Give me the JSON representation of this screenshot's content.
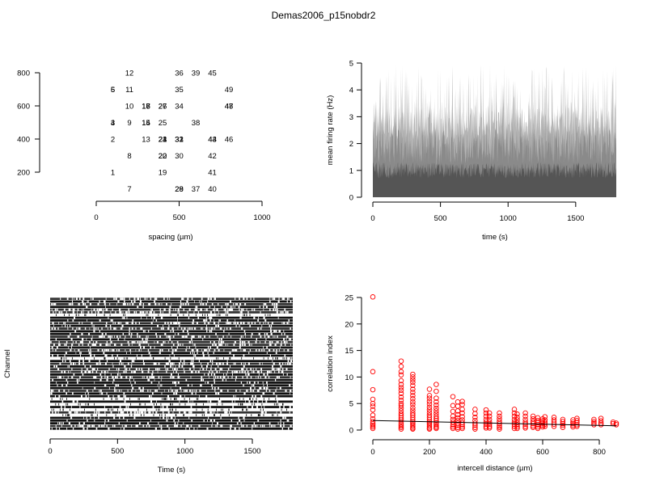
{
  "figure_title": "Demas2006_p15nobdr2",
  "chart_data": [
    {
      "id": "layout",
      "type": "scatter",
      "xlabel": "spacing (µm)",
      "ylabel": "",
      "xlim": [
        0,
        1000
      ],
      "ylim": [
        150,
        850
      ],
      "xticks": [
        0,
        500,
        1000
      ],
      "yticks": [
        200,
        400,
        600,
        800
      ],
      "points": [
        {
          "label": "1",
          "x": 100,
          "y": 200
        },
        {
          "label": "2",
          "x": 100,
          "y": 400
        },
        {
          "label": "3",
          "x": 100,
          "y": 500
        },
        {
          "label": "4",
          "x": 100,
          "y": 500
        },
        {
          "label": "5",
          "x": 100,
          "y": 700
        },
        {
          "label": "6",
          "x": 100,
          "y": 700
        },
        {
          "label": "7",
          "x": 200,
          "y": 100
        },
        {
          "label": "8",
          "x": 200,
          "y": 300
        },
        {
          "label": "9",
          "x": 200,
          "y": 500
        },
        {
          "label": "10",
          "x": 200,
          "y": 600
        },
        {
          "label": "11",
          "x": 200,
          "y": 700
        },
        {
          "label": "12",
          "x": 200,
          "y": 800
        },
        {
          "label": "13",
          "x": 300,
          "y": 400
        },
        {
          "label": "14",
          "x": 300,
          "y": 500
        },
        {
          "label": "15",
          "x": 300,
          "y": 500
        },
        {
          "label": "16",
          "x": 300,
          "y": 600
        },
        {
          "label": "17",
          "x": 300,
          "y": 600
        },
        {
          "label": "18",
          "x": 300,
          "y": 600
        },
        {
          "label": "19",
          "x": 400,
          "y": 200
        },
        {
          "label": "20",
          "x": 400,
          "y": 300
        },
        {
          "label": "21",
          "x": 400,
          "y": 400
        },
        {
          "label": "22",
          "x": 400,
          "y": 300
        },
        {
          "label": "23",
          "x": 400,
          "y": 400
        },
        {
          "label": "24",
          "x": 400,
          "y": 400
        },
        {
          "label": "25",
          "x": 400,
          "y": 500
        },
        {
          "label": "26",
          "x": 400,
          "y": 600
        },
        {
          "label": "27",
          "x": 400,
          "y": 600
        },
        {
          "label": "28",
          "x": 500,
          "y": 100
        },
        {
          "label": "29",
          "x": 500,
          "y": 100
        },
        {
          "label": "30",
          "x": 500,
          "y": 300
        },
        {
          "label": "31",
          "x": 500,
          "y": 400
        },
        {
          "label": "32",
          "x": 500,
          "y": 400
        },
        {
          "label": "33",
          "x": 500,
          "y": 400
        },
        {
          "label": "34",
          "x": 500,
          "y": 600
        },
        {
          "label": "35",
          "x": 500,
          "y": 700
        },
        {
          "label": "36",
          "x": 500,
          "y": 800
        },
        {
          "label": "37",
          "x": 600,
          "y": 100
        },
        {
          "label": "38",
          "x": 600,
          "y": 500
        },
        {
          "label": "39",
          "x": 600,
          "y": 800
        },
        {
          "label": "40",
          "x": 700,
          "y": 100
        },
        {
          "label": "41",
          "x": 700,
          "y": 200
        },
        {
          "label": "42",
          "x": 700,
          "y": 300
        },
        {
          "label": "43",
          "x": 700,
          "y": 400
        },
        {
          "label": "44",
          "x": 700,
          "y": 400
        },
        {
          "label": "45",
          "x": 700,
          "y": 800
        },
        {
          "label": "46",
          "x": 800,
          "y": 400
        },
        {
          "label": "47",
          "x": 800,
          "y": 600
        },
        {
          "label": "48",
          "x": 800,
          "y": 600
        },
        {
          "label": "49",
          "x": 800,
          "y": 700
        }
      ]
    },
    {
      "id": "rate",
      "type": "area",
      "xlabel": "time (s)",
      "ylabel": "mean firing rate (Hz)",
      "xlim": [
        0,
        1800
      ],
      "ylim": [
        0,
        5
      ],
      "xticks": [
        0,
        500,
        1000,
        1500
      ],
      "yticks": [
        0,
        1,
        2,
        3,
        4,
        5
      ],
      "series": [
        {
          "name": "",
          "baseline_upper_hz": 3.4,
          "peak_max_hz": 4.95,
          "dark_band_upper_hz": 1.3,
          "color_light": "#b5b5b5",
          "color_dark": "#555555"
        }
      ]
    },
    {
      "id": "raster",
      "type": "heatmap",
      "xlabel": "Time (s)",
      "ylabel": "Channel",
      "xlim": [
        0,
        1800
      ],
      "xticks": [
        0,
        500,
        1000,
        1500
      ],
      "channels": 49
    },
    {
      "id": "correlation",
      "type": "scatter",
      "xlabel": "intercell distance (µm)",
      "ylabel": "correlation index",
      "xlim": [
        0,
        860
      ],
      "ylim": [
        0,
        25
      ],
      "xticks": [
        0,
        200,
        400,
        600,
        800
      ],
      "yticks": [
        0,
        5,
        10,
        15,
        20,
        25
      ],
      "marker_color": "#ff0000",
      "fit_line": {
        "x": [
          0,
          860
        ],
        "y": [
          1.8,
          0.8
        ]
      },
      "groups": [
        {
          "x": 0,
          "values": [
            25.1,
            11.0,
            7.6,
            5.8,
            5.0,
            4.5,
            3.8,
            2.8,
            2.1,
            1.6,
            1.2,
            0.9,
            0.6,
            0.3
          ]
        },
        {
          "x": 100,
          "values": [
            13.0,
            12.0,
            11.0,
            10.4,
            9.3,
            8.6,
            8.0,
            7.5,
            6.9,
            6.2,
            5.6,
            5.0,
            4.6,
            4.1,
            3.6,
            3.1,
            2.7,
            2.3,
            1.9,
            1.5,
            1.1,
            0.8,
            0.5,
            0.2
          ]
        },
        {
          "x": 141,
          "values": [
            10.5,
            10.0,
            9.5,
            9.0,
            8.4,
            7.7,
            7.1,
            6.5,
            5.9,
            5.3,
            4.8,
            4.2,
            3.7,
            3.2,
            2.8,
            2.4,
            2.0,
            1.6,
            1.3,
            1.0,
            0.7,
            0.4,
            0.2
          ]
        },
        {
          "x": 200,
          "values": [
            7.7,
            6.5,
            6.0,
            5.4,
            4.9,
            4.3,
            3.8,
            3.3,
            2.8,
            2.4,
            2.0,
            1.6,
            1.3,
            1.0,
            0.7,
            0.4,
            0.2
          ]
        },
        {
          "x": 224,
          "values": [
            8.6,
            7.3,
            6.0,
            5.3,
            4.7,
            4.1,
            3.6,
            3.1,
            2.6,
            2.2,
            1.8,
            1.4,
            1.1,
            0.8,
            0.5,
            0.3
          ]
        },
        {
          "x": 283,
          "values": [
            6.3,
            4.6,
            3.5,
            2.6,
            2.0,
            1.5,
            1.0,
            0.6,
            0.3
          ]
        },
        {
          "x": 300,
          "values": [
            5.3,
            4.5,
            3.6,
            2.9,
            2.3,
            1.8,
            1.3,
            0.9,
            0.5,
            0.2
          ]
        },
        {
          "x": 316,
          "values": [
            5.4,
            4.8,
            3.9,
            3.2,
            2.5,
            1.9,
            1.4,
            1.0,
            0.6,
            0.3
          ]
        },
        {
          "x": 361,
          "values": [
            3.9,
            3.1,
            2.4,
            1.8,
            1.3,
            0.9,
            0.5,
            0.2
          ]
        },
        {
          "x": 400,
          "values": [
            3.8,
            3.2,
            2.6,
            2.0,
            1.5,
            1.1,
            0.7,
            0.4
          ]
        },
        {
          "x": 412,
          "values": [
            3.2,
            2.6,
            2.0,
            1.5,
            1.1,
            0.7,
            0.4
          ]
        },
        {
          "x": 447,
          "values": [
            3.2,
            2.6,
            2.1,
            1.6,
            1.2,
            0.8,
            0.5,
            0.2
          ]
        },
        {
          "x": 500,
          "values": [
            3.9,
            3.2,
            2.6,
            2.0,
            1.5,
            1.1,
            0.7,
            0.3
          ]
        },
        {
          "x": 510,
          "values": [
            3.0,
            2.4,
            1.9,
            1.4,
            1.0,
            0.6,
            0.3
          ]
        },
        {
          "x": 539,
          "values": [
            3.2,
            2.6,
            2.0,
            1.5,
            1.1,
            0.7,
            0.4
          ]
        },
        {
          "x": 566,
          "values": [
            2.6,
            2.1,
            1.6,
            1.2,
            0.8,
            0.5
          ]
        },
        {
          "x": 583,
          "values": [
            2.3,
            1.8,
            1.4,
            1.0,
            0.6,
            0.3
          ]
        },
        {
          "x": 600,
          "values": [
            2.1,
            1.7,
            1.3,
            0.9,
            0.6
          ]
        },
        {
          "x": 608,
          "values": [
            2.5,
            1.9,
            1.5,
            1.1,
            0.7
          ]
        },
        {
          "x": 640,
          "values": [
            2.4,
            1.9,
            1.5,
            1.1,
            0.7
          ]
        },
        {
          "x": 671,
          "values": [
            2.0,
            1.6,
            1.2,
            0.9,
            0.5
          ]
        },
        {
          "x": 707,
          "values": [
            1.9,
            1.5,
            1.2,
            0.9,
            0.6
          ]
        },
        {
          "x": 721,
          "values": [
            2.2,
            1.8,
            1.4,
            1.0,
            0.7
          ]
        },
        {
          "x": 781,
          "values": [
            2.0,
            1.6,
            1.3,
            1.0
          ]
        },
        {
          "x": 806,
          "values": [
            2.2,
            1.7,
            1.3,
            1.0
          ]
        },
        {
          "x": 849,
          "values": [
            1.5,
            1.2
          ]
        },
        {
          "x": 860,
          "values": [
            1.3,
            1.0
          ]
        }
      ]
    }
  ]
}
